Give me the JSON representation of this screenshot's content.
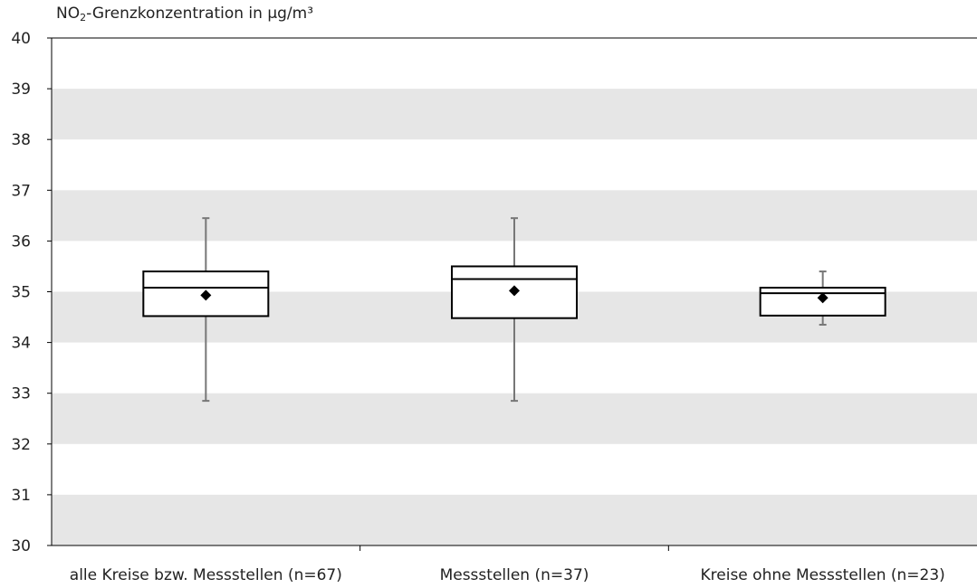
{
  "chart_data": {
    "type": "boxplot",
    "ylabel": {
      "prefix": "NO",
      "subscript": "2",
      "suffix": "-Grenzkonzentration in µg/m³"
    },
    "ylim": [
      30,
      40
    ],
    "yticks": [
      30,
      31,
      32,
      33,
      34,
      35,
      36,
      37,
      38,
      39,
      40
    ],
    "grid": "alternating horizontal bands",
    "colors": {
      "band": "#e6e6e6",
      "box_stroke": "#000000",
      "whisker": "#777777",
      "mean_marker": "#000000"
    },
    "categories": [
      "alle Kreise bzw. Messstellen (n=67)",
      "Messstellen (n=37)",
      "Kreise ohne Messstellen (n=23)"
    ],
    "boxes": [
      {
        "min": 32.85,
        "q1": 34.52,
        "median": 35.08,
        "q3": 35.4,
        "max": 36.45,
        "mean": 34.93
      },
      {
        "min": 32.85,
        "q1": 34.48,
        "median": 35.25,
        "q3": 35.5,
        "max": 36.45,
        "mean": 35.02
      },
      {
        "min": 34.35,
        "q1": 34.53,
        "median": 34.97,
        "q3": 35.08,
        "max": 35.4,
        "mean": 34.88
      }
    ]
  }
}
